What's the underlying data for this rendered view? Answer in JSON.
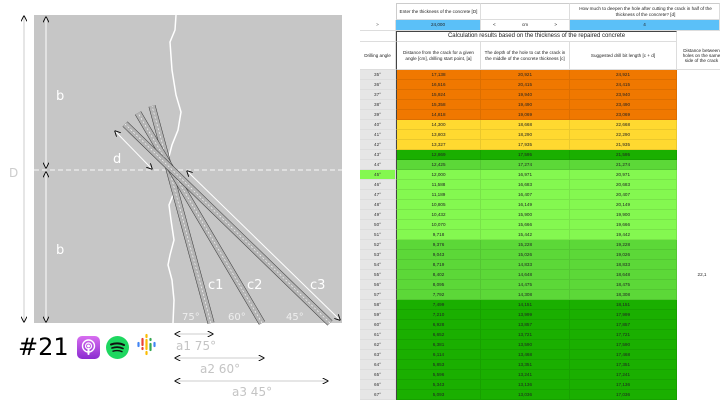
{
  "diagram": {
    "labels": {
      "D": "D",
      "b_top": "b",
      "b_bottom": "b",
      "d": "d",
      "c1": "c1",
      "c2": "c2",
      "c3": "c3",
      "ang75": "75°",
      "ang60": "60°",
      "ang45": "45°",
      "a1": "a1 75°",
      "a2": "a2 60°",
      "a3": "a3 45°"
    }
  },
  "episode": {
    "number": "#21",
    "icons": [
      "apple-podcasts-icon",
      "spotify-icon",
      "google-podcasts-icon"
    ]
  },
  "sheet": {
    "thickness_label": "Enter the thickness of the concrete [D]",
    "deepen_label": "How much to deepen the hole after cutting the crack in half of the thickness of the concrete? [d]",
    "arrow_right": ">",
    "thickness_value": "24,000",
    "unit_prev": "<",
    "unit": "cm",
    "unit_next": ">",
    "deepen_value": "4",
    "results_title": "Calculation results based on the thickness of the repaired concrete",
    "col_angle": "Drilling angle",
    "col_a": "Distance from the crack for a given angle [cm], drilling start point, [a]",
    "col_c": "The depth of the hole to cut the crack in the middle of the concrete thickness [c]",
    "col_cd": "Suggested drill bit length [c + d]",
    "col_dist": "Distance between holes on the same side of the crack",
    "dist_value": "22,1",
    "colors": {
      "orange": "#f07800",
      "yellow": "#ffd930",
      "dark": "#1aaf00",
      "mid": "#5cd838",
      "light": "#84f850"
    },
    "rows": [
      [
        "35°",
        "17,138",
        "20,921",
        "24,921",
        "orange"
      ],
      [
        "36°",
        "16,516",
        "20,415",
        "24,415",
        "orange"
      ],
      [
        "37°",
        "15,924",
        "19,940",
        "23,940",
        "orange"
      ],
      [
        "38°",
        "15,358",
        "19,490",
        "23,490",
        "orange"
      ],
      [
        "39°",
        "14,818",
        "19,069",
        "23,069",
        "orange"
      ],
      [
        "40°",
        "14,300",
        "18,668",
        "22,668",
        "yellow"
      ],
      [
        "41°",
        "13,803",
        "18,290",
        "22,290",
        "yellow"
      ],
      [
        "42°",
        "13,327",
        "17,935",
        "21,935",
        "yellow"
      ],
      [
        "43°",
        "12,869",
        "17,595",
        "21,595",
        "dark"
      ],
      [
        "44°",
        "12,425",
        "17,274",
        "21,274",
        "mid"
      ],
      [
        "45°",
        "12,000",
        "16,971",
        "20,971",
        "light"
      ],
      [
        "46°",
        "11,588",
        "16,683",
        "20,683",
        "light"
      ],
      [
        "47°",
        "11,189",
        "16,407",
        "20,407",
        "light"
      ],
      [
        "48°",
        "10,805",
        "16,149",
        "20,149",
        "light"
      ],
      [
        "49°",
        "10,432",
        "15,900",
        "19,900",
        "light"
      ],
      [
        "50°",
        "10,070",
        "15,666",
        "19,666",
        "light"
      ],
      [
        "51°",
        "9,718",
        "15,442",
        "19,442",
        "light"
      ],
      [
        "52°",
        "9,376",
        "15,228",
        "19,228",
        "mid"
      ],
      [
        "53°",
        "9,043",
        "15,026",
        "19,026",
        "mid"
      ],
      [
        "54°",
        "8,719",
        "14,833",
        "18,833",
        "mid"
      ],
      [
        "55°",
        "8,402",
        "14,648",
        "18,648",
        "mid"
      ],
      [
        "56°",
        "8,095",
        "14,475",
        "18,475",
        "mid"
      ],
      [
        "57°",
        "7,792",
        "14,308",
        "18,308",
        "mid"
      ],
      [
        "58°",
        "7,499",
        "14,151",
        "18,151",
        "dark"
      ],
      [
        "59°",
        "7,210",
        "13,999",
        "17,999",
        "dark"
      ],
      [
        "60°",
        "6,928",
        "13,857",
        "17,857",
        "dark"
      ],
      [
        "61°",
        "6,652",
        "13,721",
        "17,721",
        "dark"
      ],
      [
        "62°",
        "6,381",
        "13,590",
        "17,590",
        "dark"
      ],
      [
        "63°",
        "6,114",
        "13,468",
        "17,468",
        "dark"
      ],
      [
        "64°",
        "5,853",
        "13,351",
        "17,351",
        "dark"
      ],
      [
        "65°",
        "5,596",
        "13,241",
        "17,241",
        "dark"
      ],
      [
        "66°",
        "5,343",
        "13,136",
        "17,136",
        "dark"
      ],
      [
        "67°",
        "5,093",
        "13,036",
        "17,036",
        "dark"
      ]
    ]
  }
}
